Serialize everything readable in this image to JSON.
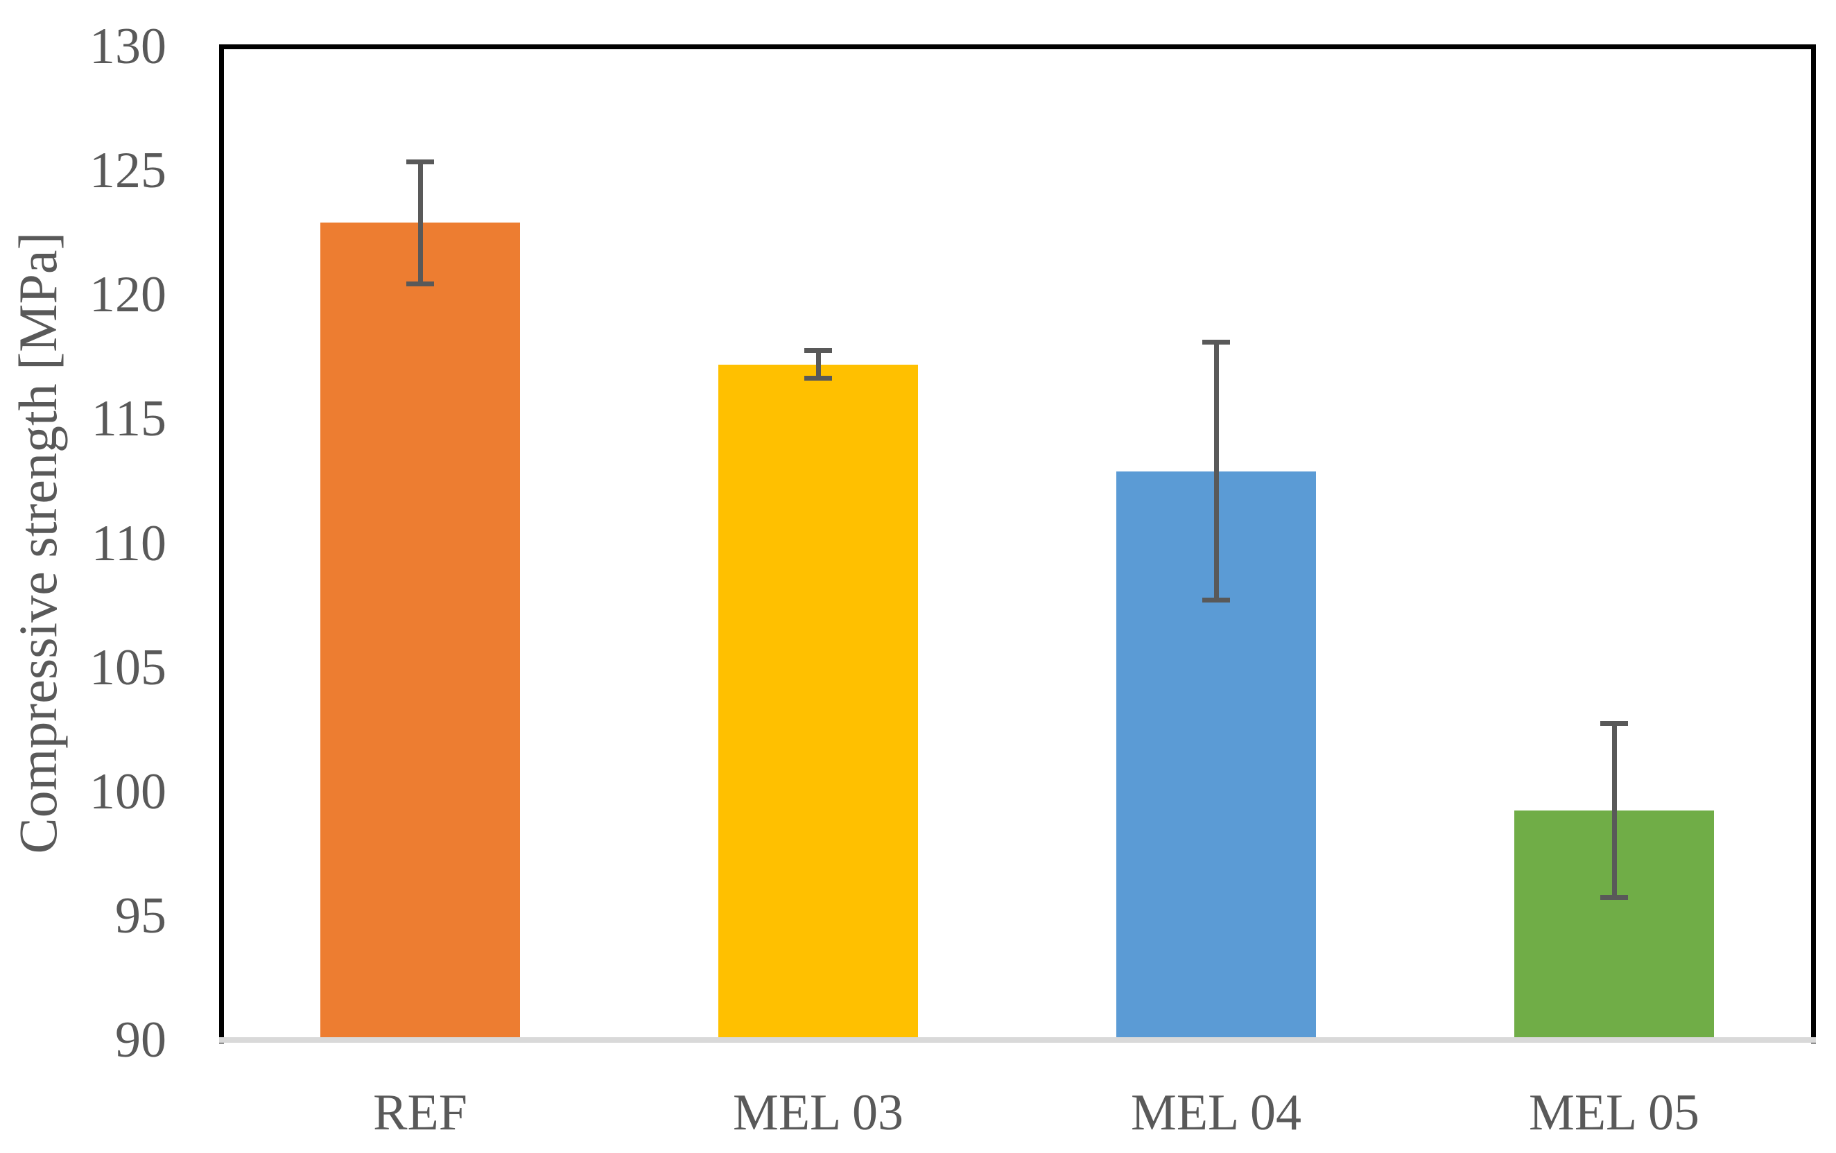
{
  "chart_data": {
    "type": "bar",
    "title": "",
    "ylabel": "Compressive strength [MPa]",
    "xlabel": "",
    "ylim": [
      90,
      130
    ],
    "ytick_step": 5,
    "yticks": [
      90,
      95,
      100,
      105,
      110,
      115,
      120,
      125,
      130
    ],
    "categories": [
      "REF",
      "MEL 03",
      "MEL 04",
      "MEL 05"
    ],
    "values": [
      122.9,
      117.2,
      112.9,
      99.25
    ],
    "error_bars": [
      2.45,
      0.55,
      5.2,
      3.5
    ],
    "bar_colors": [
      "#ED7D31",
      "#FFC000",
      "#5B9BD5",
      "#70AD47"
    ],
    "error_bar_color": "#595959",
    "tick_label_color": "#595959",
    "frame_color": "#000000",
    "baseline_color": "#D9D9D9",
    "background_color": "#FFFFFF",
    "grid": false,
    "legend": null
  }
}
